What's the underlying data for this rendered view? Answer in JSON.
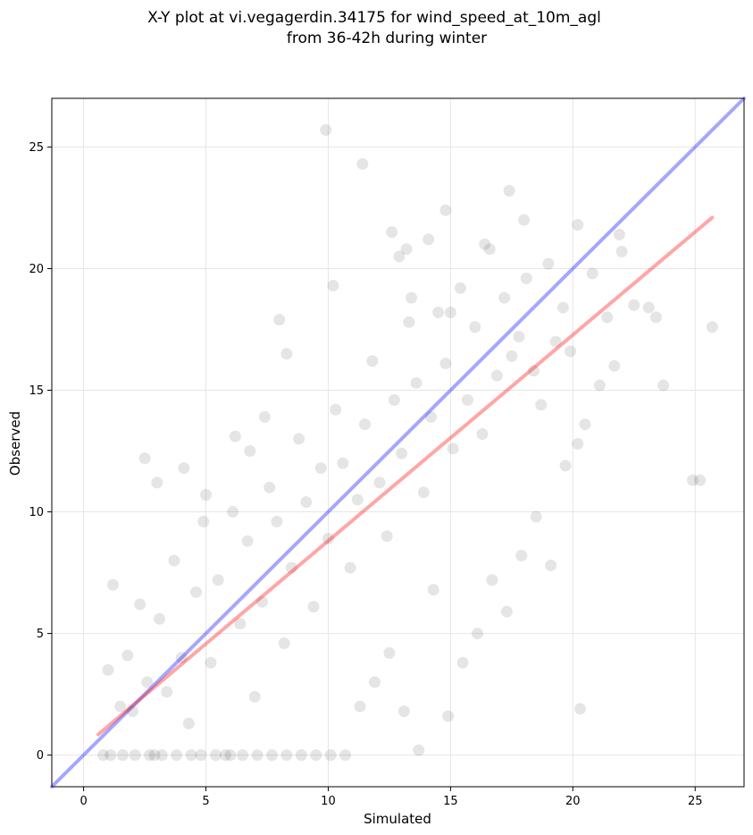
{
  "title_line1": "X-Y plot at vi.vegagerdin.34175 for wind_speed_at_10m_agl",
  "title_line2": "from 36-42h during winter",
  "chart_data": {
    "type": "scatter",
    "title": "X-Y plot at vi.vegagerdin.34175 for wind_speed_at_10m_agl from 36-42h during winter",
    "xlabel": "Simulated",
    "ylabel": "Observed",
    "xlim": [
      -1.3,
      27.0
    ],
    "ylim": [
      -1.3,
      27.0
    ],
    "xticks": [
      0,
      5,
      10,
      15,
      20,
      25
    ],
    "yticks": [
      0,
      5,
      10,
      15,
      20,
      25
    ],
    "grid": true,
    "point_color": "#000000",
    "point_alpha": 0.1,
    "series": [
      {
        "type": "scatter",
        "x": [
          0.8,
          1.0,
          1.2,
          1.5,
          1.8,
          2.0,
          2.3,
          2.6,
          2.9,
          3.1,
          3.4,
          3.7,
          4.0,
          4.3,
          4.6,
          4.9,
          5.2,
          5.5,
          5.8,
          6.1,
          6.4,
          6.7,
          7.0,
          7.3,
          7.6,
          7.9,
          8.2,
          8.5,
          8.8,
          9.1,
          9.4,
          9.7,
          10.0,
          10.3,
          10.6,
          10.9,
          11.2,
          11.5,
          11.8,
          12.1,
          12.4,
          12.7,
          13.0,
          13.3,
          13.6,
          13.9,
          14.2,
          14.5,
          14.8,
          15.1,
          15.4,
          15.7,
          16.0,
          16.3,
          16.6,
          16.9,
          17.2,
          17.5,
          17.8,
          18.1,
          18.4,
          18.7,
          19.0,
          19.3,
          19.6,
          19.9,
          20.2,
          20.5,
          20.8,
          21.1,
          21.4,
          21.7,
          22.0,
          22.5,
          23.1,
          23.4,
          23.7,
          24.9,
          25.2,
          25.7,
          1.1,
          1.6,
          2.1,
          2.7,
          3.2,
          3.8,
          4.4,
          4.8,
          5.4,
          6.0,
          6.5,
          7.1,
          7.7,
          8.3,
          8.9,
          9.5,
          10.1,
          10.7,
          11.3,
          11.9,
          12.5,
          13.1,
          13.7,
          14.3,
          14.9,
          15.5,
          16.1,
          16.7,
          17.3,
          17.9,
          18.5,
          19.1,
          19.7,
          20.3,
          9.9,
          10.2,
          11.4,
          8.3,
          15.0,
          12.6,
          13.2,
          20.2,
          3.0,
          2.5,
          4.1,
          6.2,
          7.4,
          5.0,
          6.8,
          8.0,
          12.9,
          14.1,
          14.8,
          18.0,
          17.4,
          16.4,
          13.4,
          21.9
        ],
        "y": [
          0.0,
          3.5,
          7.0,
          2.0,
          4.1,
          1.8,
          6.2,
          3.0,
          0.0,
          5.6,
          2.6,
          8.0,
          4.0,
          1.3,
          6.7,
          9.6,
          3.8,
          7.2,
          0.0,
          10.0,
          5.4,
          8.8,
          2.4,
          6.3,
          11.0,
          9.6,
          4.6,
          7.7,
          13.0,
          10.4,
          6.1,
          11.8,
          8.9,
          14.2,
          12.0,
          7.7,
          10.5,
          13.6,
          16.2,
          11.2,
          9.0,
          14.6,
          12.4,
          17.8,
          15.3,
          10.8,
          13.9,
          18.2,
          16.1,
          12.6,
          19.2,
          14.6,
          17.6,
          13.2,
          20.8,
          15.6,
          18.8,
          16.4,
          17.2,
          19.6,
          15.8,
          14.4,
          20.2,
          17.0,
          18.4,
          16.6,
          21.8,
          13.6,
          19.8,
          15.2,
          18.0,
          16.0,
          20.7,
          18.5,
          18.4,
          18.0,
          15.2,
          11.3,
          11.3,
          17.6,
          0.0,
          0.0,
          0.0,
          0.0,
          0.0,
          0.0,
          0.0,
          0.0,
          0.0,
          0.0,
          0.0,
          0.0,
          0.0,
          0.0,
          0.0,
          0.0,
          0.0,
          0.0,
          2.0,
          3.0,
          4.2,
          1.8,
          0.2,
          6.8,
          1.6,
          3.8,
          5.0,
          7.2,
          5.9,
          8.2,
          9.8,
          7.8,
          11.9,
          1.9,
          25.7,
          19.3,
          24.3,
          16.5,
          18.2,
          21.5,
          20.8,
          12.8,
          11.2,
          12.2,
          11.8,
          13.1,
          13.9,
          10.7,
          12.5,
          17.9,
          20.5,
          21.2,
          22.4,
          22.0,
          23.2,
          21.0,
          18.8,
          21.4
        ],
        "note_density": "dense cloud of semi-transparent points"
      },
      {
        "type": "line",
        "name": "",
        "color": "#0000ff",
        "alpha": 0.35,
        "x": [
          -1.3,
          27.0
        ],
        "y": [
          -1.3,
          27.0
        ]
      },
      {
        "type": "line",
        "name": "",
        "color": "#ff0000",
        "alpha": 0.35,
        "x": [
          0.6,
          25.7
        ],
        "y": [
          0.85,
          22.1
        ]
      }
    ]
  }
}
